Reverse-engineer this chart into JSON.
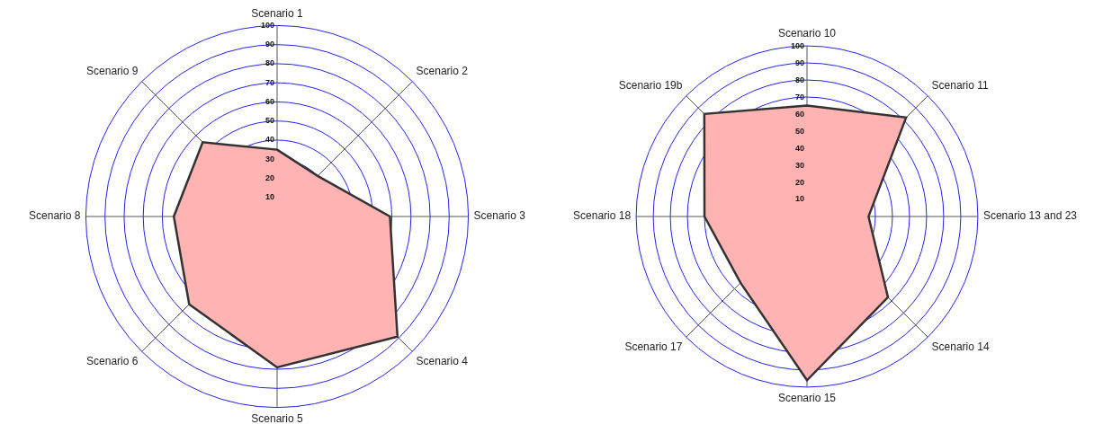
{
  "chart_data": [
    {
      "type": "radar",
      "categories": [
        "Scenario 1",
        "Scenario 2",
        "Scenario 3",
        "Scenario 4",
        "Scenario 5",
        "Scenario 6",
        "Scenario 8",
        "Scenario 9"
      ],
      "series": [
        {
          "color": "#ffb3b3",
          "values": [
            35,
            30,
            59,
            89,
            79,
            65,
            54,
            55
          ]
        }
      ],
      "ylim": [
        0,
        100
      ],
      "yticks": [
        10,
        20,
        30,
        40,
        50,
        60,
        70,
        80,
        90,
        100
      ],
      "grid": true,
      "marker": "none"
    },
    {
      "type": "radar",
      "categories": [
        "Scenario 10",
        "Scenario 11",
        "Scenario 13 and 23",
        "Scenario 14",
        "Scenario 15",
        "Scenario 17",
        "Scenario 18",
        "Scenario 19b"
      ],
      "series": [
        {
          "color": "#ffb3b3",
          "values": [
            65,
            82,
            36,
            67,
            96,
            55,
            60,
            85
          ]
        }
      ],
      "ylim": [
        0,
        100
      ],
      "yticks": [
        10,
        20,
        30,
        40,
        50,
        60,
        70,
        80,
        90,
        100
      ],
      "grid": true,
      "marker": "none"
    }
  ]
}
